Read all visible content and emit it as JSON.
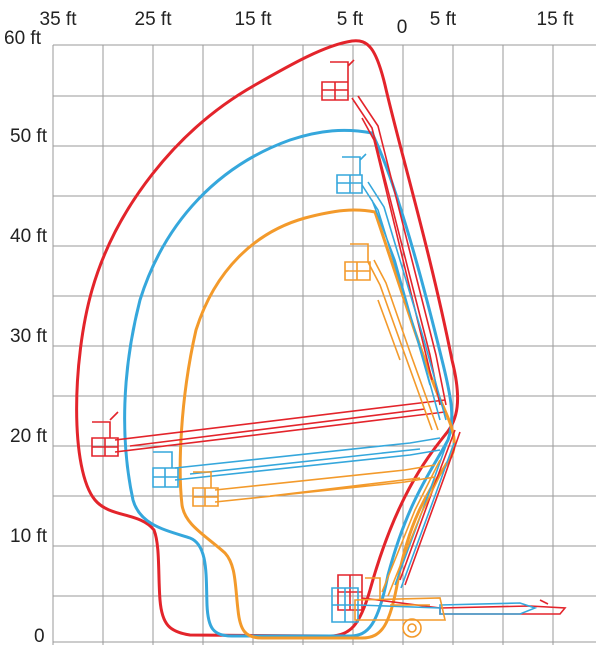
{
  "x_ticks": [
    "35 ft",
    "25 ft",
    "15 ft",
    "5 ft",
    "0",
    "5 ft",
    "15 ft"
  ],
  "y_ticks": [
    "60 ft",
    "50 ft",
    "40 ft",
    "30 ft",
    "20 ft",
    "10 ft",
    "0"
  ],
  "colors": {
    "red": "#e3242b",
    "blue": "#35a7dc",
    "orange": "#f39a2b",
    "grid": "#9a9a9a",
    "text": "#222222"
  }
}
